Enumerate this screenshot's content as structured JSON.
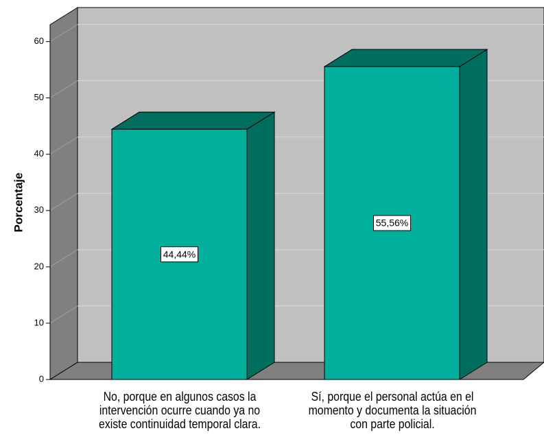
{
  "chart_data": {
    "type": "bar3d",
    "y_label": "Porcentaje",
    "categories": [
      "No, porque en algunos casos la intervención ocurre cuando ya no existe continuidad temporal clara.",
      "Sí, porque el personal actúa en el momento y documenta la situación con parte policial."
    ],
    "values": [
      44.44,
      55.56
    ],
    "value_labels": [
      "44,44%",
      "55,56%"
    ],
    "color": "#00b09c",
    "ylim": [
      0,
      63
    ],
    "yticks": [
      0,
      10,
      20,
      30,
      40,
      50,
      60
    ],
    "grid": true
  }
}
